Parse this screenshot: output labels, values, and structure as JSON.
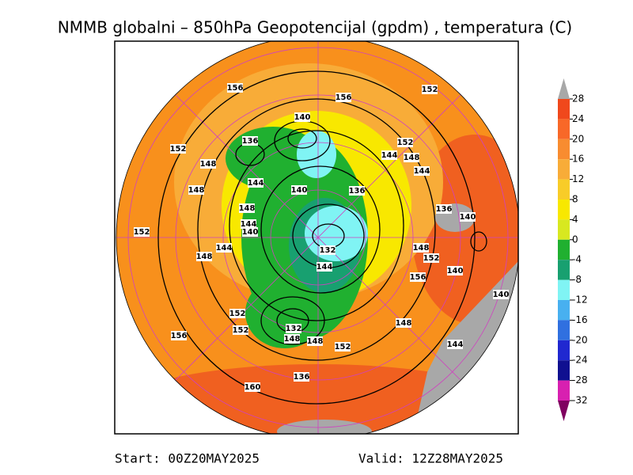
{
  "title": "NMMB globalni – 850hPa Geopotencijal (gpdm) , temperatura (C)",
  "colorbar": {
    "levels": [
      28,
      24,
      20,
      16,
      12,
      8,
      4,
      0,
      -4,
      -8,
      -12,
      -16,
      -20,
      -24,
      -28,
      -32
    ],
    "colors": [
      "#f0481c",
      "#f86828",
      "#f88c30",
      "#f8ac38",
      "#f8cc28",
      "#f8e800",
      "#d8e820",
      "#20b030",
      "#18a070",
      "#80f4f4",
      "#48b0f0",
      "#3070e0",
      "#2028d0",
      "#101090",
      "#d820b0"
    ],
    "over_color": "#a8a8a8",
    "under_color": "#800060"
  },
  "contour_labels": [
    156,
    156,
    152,
    140,
    136,
    152,
    152,
    144,
    148,
    148,
    144,
    144,
    140,
    136,
    148,
    136,
    140,
    148,
    144,
    140,
    152,
    144,
    148,
    132,
    148,
    152,
    144,
    140,
    156,
    140,
    152,
    148,
    152,
    132,
    148,
    148,
    152,
    156,
    144,
    136,
    160
  ],
  "footer": {
    "start": "Start: 00Z20MAY2025",
    "valid": "Valid: 12Z28MAY2025"
  }
}
